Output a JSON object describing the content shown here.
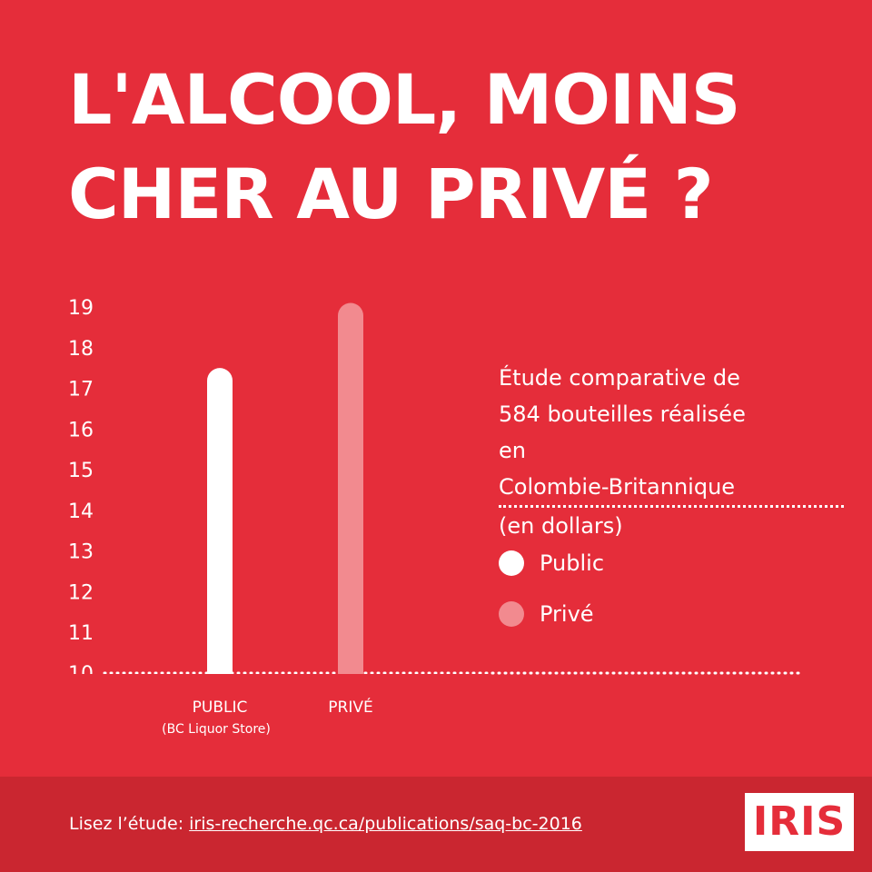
{
  "title": {
    "line1": "L'ALCOOL, MOINS",
    "line2": "CHER AU PRIVÉ ?"
  },
  "description": {
    "line1": "Étude comparative de",
    "line2": "584 bouteilles réalisée",
    "line3_prefix": "en ",
    "line3_underlined": "Colombie-Britannique",
    "line4": "(en dollars)"
  },
  "legend": [
    {
      "label": "Public",
      "color": "#ffffff"
    },
    {
      "label": "Privé",
      "color": "#f28a8f"
    }
  ],
  "chart_data": {
    "type": "bar",
    "categories": [
      "PUBLIC",
      "PRIVÉ"
    ],
    "category_sublabels": [
      "(BC Liquor Store)",
      ""
    ],
    "series": [
      {
        "name": "Public",
        "values": [
          17.5,
          null
        ],
        "color": "#ffffff"
      },
      {
        "name": "Privé",
        "values": [
          null,
          19.1
        ],
        "color": "#f28a8f"
      }
    ],
    "y_ticks": [
      10,
      11,
      12,
      13,
      14,
      15,
      16,
      17,
      18,
      19
    ],
    "ylim": [
      10,
      19
    ],
    "xlabel": "",
    "ylabel": "",
    "baseline_style": "dotted",
    "grid": false,
    "legend_position": "right"
  },
  "footer": {
    "prefix": "Lisez l’étude: ",
    "link": "iris-recherche.qc.ca/publications/saq-bc-2016",
    "logo": "IRIS"
  },
  "colors": {
    "background": "#e52d3a",
    "footer": "#ca2630",
    "public": "#ffffff",
    "prive": "#f28a8f"
  }
}
